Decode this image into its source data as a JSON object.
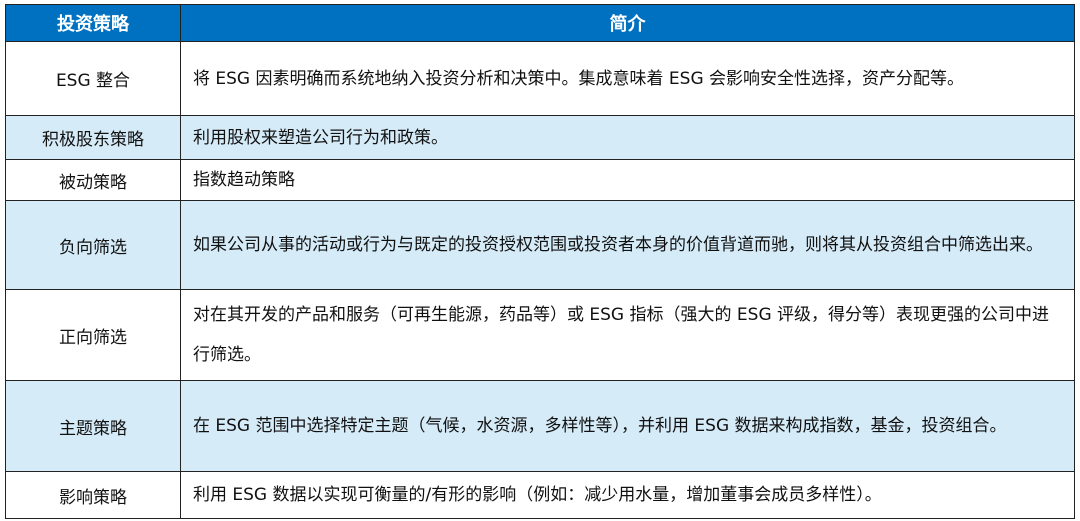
{
  "table": {
    "headers": [
      "投资策略",
      "简介"
    ],
    "rows": [
      {
        "strategy": "ESG 整合",
        "description": "将 ESG 因素明确而系统地纳入投资分析和决策中。集成意味着 ESG 会影响安全性选择，资产分配等。"
      },
      {
        "strategy": "积极股东策略",
        "description": "利用股权来塑造公司行为和政策。"
      },
      {
        "strategy": "被动策略",
        "description": "指数趋动策略"
      },
      {
        "strategy": "负向筛选",
        "description": "如果公司从事的活动或行为与既定的投资授权范围或投资者本身的价值背道而驰，则将其从投资组合中筛选出来。"
      },
      {
        "strategy": "正向筛选",
        "description": "对在其开发的产品和服务（可再生能源，药品等）或 ESG 指标（强大的 ESG 评级，得分等）表现更强的公司中进行筛选。"
      },
      {
        "strategy": "主题策略",
        "description": "在 ESG 范围中选择特定主题（气候，水资源，多样性等），并利用 ESG 数据来构成指数，基金，投资组合。"
      },
      {
        "strategy": "影响策略",
        "description": "利用 ESG 数据以实现可衡量的/有形的影响（例如：减少用水量，增加董事会成员多样性）。"
      }
    ]
  },
  "colors": {
    "header": "#0070c0",
    "alt_row": "#d5ebf8"
  }
}
